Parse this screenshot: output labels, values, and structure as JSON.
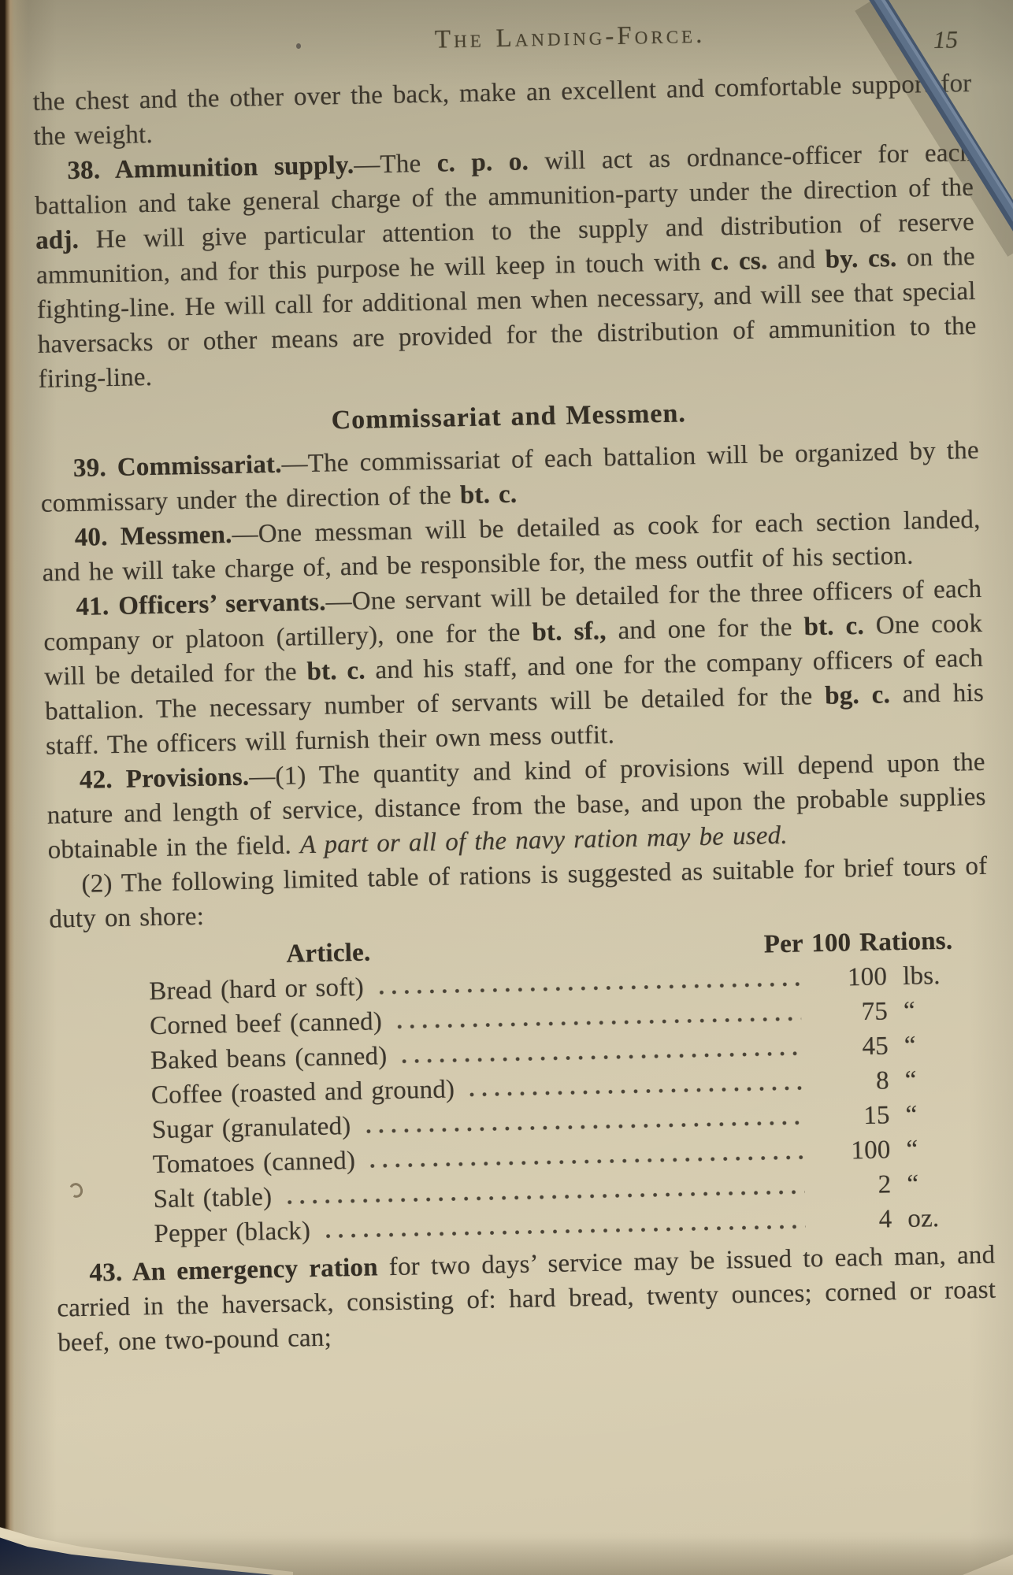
{
  "page": {
    "running_header": "The Landing-Force.",
    "page_number": "15"
  },
  "section_heading": "Commissariat and Messmen.",
  "paragraphs": {
    "intro": [
      {
        "t": "the chest and the other over the back, make an excellent and comfortable support for the weight."
      }
    ],
    "p38": [
      {
        "t": "38. Ammunition supply.",
        "b": true
      },
      {
        "t": "—The "
      },
      {
        "t": "c. p. o.",
        "b": true
      },
      {
        "t": " will act as ordnance-officer for each battalion and take general charge of the ammunition-party under the direction of the "
      },
      {
        "t": "adj.",
        "b": true
      },
      {
        "t": " He will give particular attention to the supply and distribution of reserve ammunition, and for this purpose he will keep in touch with "
      },
      {
        "t": "c. cs.",
        "b": true
      },
      {
        "t": " and "
      },
      {
        "t": "by. cs.",
        "b": true
      },
      {
        "t": " on the fighting-line. He will call for additional men when necessary, and will see that special haversacks or other means are provided for the distribution of ammunition to the firing-line."
      }
    ],
    "p39": [
      {
        "t": "39. Commissariat.",
        "b": true
      },
      {
        "t": "—The commissariat of each battalion will be organized by the commissary under the direction of the "
      },
      {
        "t": "bt. c.",
        "b": true
      }
    ],
    "p40": [
      {
        "t": "40. Messmen.",
        "b": true
      },
      {
        "t": "—One messman will be detailed as cook for each section landed, and he will take charge of, and be responsible for, the mess outfit of his section."
      }
    ],
    "p41": [
      {
        "t": "41. Officers’ servants.",
        "b": true
      },
      {
        "t": "—One servant will be detailed for the three officers of each company or platoon (artillery), one for the "
      },
      {
        "t": "bt. sf.,",
        "b": true
      },
      {
        "t": " and one for the "
      },
      {
        "t": "bt. c.",
        "b": true
      },
      {
        "t": " One cook will be detailed for the "
      },
      {
        "t": "bt. c.",
        "b": true
      },
      {
        "t": " and his staff, and one for the company officers of each battalion. The necessary number of servants will be detailed for the "
      },
      {
        "t": "bg. c.",
        "b": true
      },
      {
        "t": " and his staff. The officers will furnish their own mess outfit."
      }
    ],
    "p42": [
      {
        "t": "42. Provisions.",
        "b": true
      },
      {
        "t": "—(1) The quantity and kind of provisions will depend upon the nature and length of service, distance from the base, and upon the probable supplies obtainable in the field. "
      },
      {
        "t": "A part or all of the navy ration may be used.",
        "i": true
      }
    ],
    "p42_2": [
      {
        "t": "(2) The following limited table of rations is suggested as suitable for brief tours of duty on shore:"
      }
    ],
    "p43": [
      {
        "t": "43. An emergency ration",
        "b": true
      },
      {
        "t": " for two days’ service may be issued to each man, and carried in the haversack, consisting of: hard bread, twenty ounces; corned or roast beef, one two-pound can;"
      }
    ]
  },
  "ration_table": {
    "col_article": "Article.",
    "col_per100": "Per 100 Rations.",
    "rows": [
      {
        "article": "Bread (hard or soft)",
        "qty": "100",
        "unit": "lbs."
      },
      {
        "article": "Corned beef (canned)",
        "qty": "75",
        "unit": "“"
      },
      {
        "article": "Baked beans (canned)",
        "qty": "45",
        "unit": "“"
      },
      {
        "article": "Coffee (roasted and ground)",
        "qty": "8",
        "unit": "“"
      },
      {
        "article": "Sugar (granulated)",
        "qty": "15",
        "unit": "“"
      },
      {
        "article": "Tomatoes (canned)",
        "qty": "100",
        "unit": "“"
      },
      {
        "article": "Salt (table)",
        "qty": "2",
        "unit": "“"
      },
      {
        "article": "Pepper (black)",
        "qty": "4",
        "unit": "oz."
      }
    ]
  },
  "colors": {
    "paper": "#cdc4a8",
    "ink": "#3c362c",
    "cord_blue": "#566a82",
    "under_surface_navy": "#2b3a58"
  }
}
